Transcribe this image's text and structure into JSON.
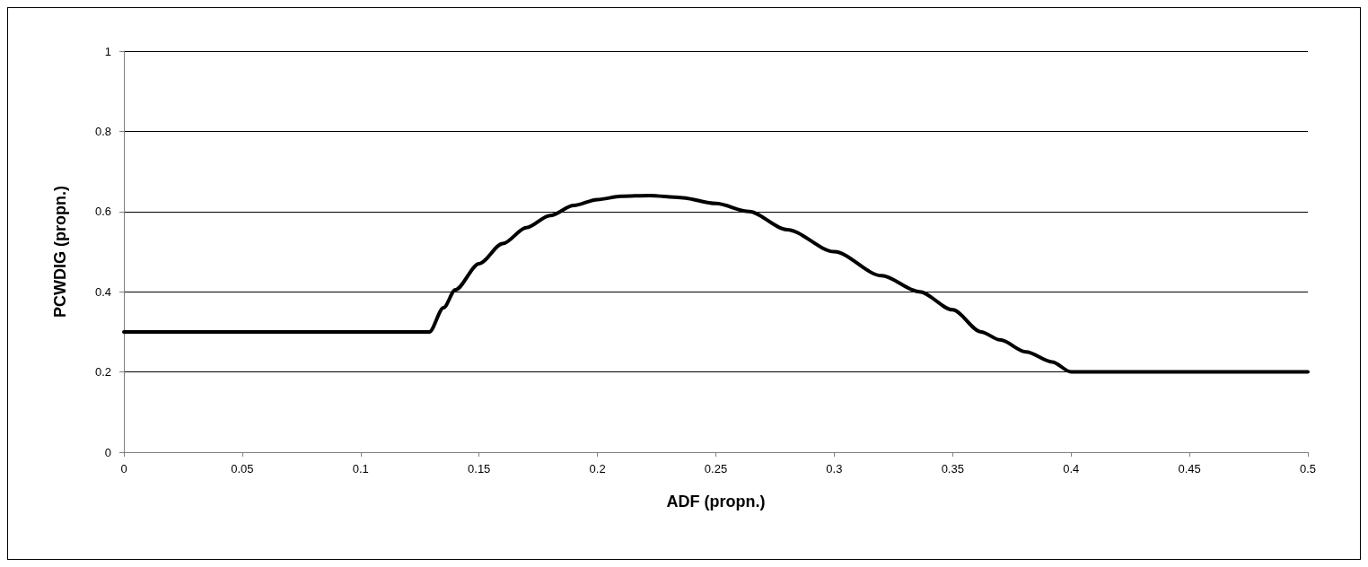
{
  "chart_data": {
    "type": "line",
    "xlabel": "ADF (propn.)",
    "ylabel": "PCWDIG (propn.)",
    "xlim": [
      0,
      0.5
    ],
    "xticks": [
      0,
      0.05,
      0.1,
      0.15,
      0.2,
      0.25,
      0.3,
      0.35,
      0.4,
      0.45,
      0.5
    ],
    "ylim": [
      0,
      1
    ],
    "yticks": [
      0,
      0.2,
      0.4,
      0.6,
      0.8,
      1
    ],
    "grid": "y",
    "marker": "none",
    "line_style": "solid",
    "series": [
      {
        "color": "#000000",
        "x": [
          0,
          0.129,
          0.135,
          0.14,
          0.15,
          0.16,
          0.17,
          0.18,
          0.19,
          0.2,
          0.21,
          0.222,
          0.235,
          0.25,
          0.264,
          0.28,
          0.3,
          0.32,
          0.336,
          0.35,
          0.362,
          0.37,
          0.381,
          0.392,
          0.4,
          0.45,
          0.5
        ],
        "values": [
          0.3,
          0.3,
          0.36,
          0.405,
          0.47,
          0.52,
          0.56,
          0.59,
          0.615,
          0.63,
          0.638,
          0.64,
          0.635,
          0.62,
          0.6,
          0.555,
          0.5,
          0.44,
          0.4,
          0.355,
          0.3,
          0.28,
          0.25,
          0.225,
          0.2,
          0.2,
          0.2
        ]
      }
    ]
  }
}
